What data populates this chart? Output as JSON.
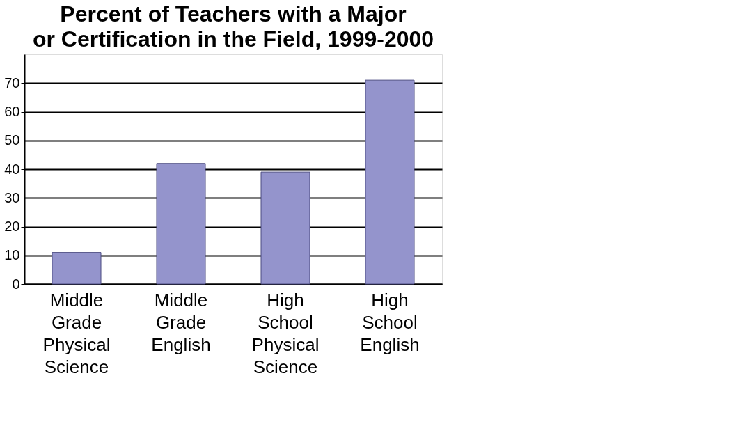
{
  "chart_data": {
    "type": "bar",
    "title": "Percent of Teachers with a Major\nor Certification in the Field, 1999-2000",
    "categories": [
      "Middle Grade Physical Science",
      "Middle Grade English",
      "High School Physical Science",
      "High School English"
    ],
    "values": [
      11,
      42,
      39,
      71
    ],
    "color": "#9494cc",
    "ylim": [
      0,
      80
    ],
    "yticks": [
      0,
      10,
      20,
      30,
      40,
      50,
      60,
      70
    ],
    "grid": "y"
  }
}
